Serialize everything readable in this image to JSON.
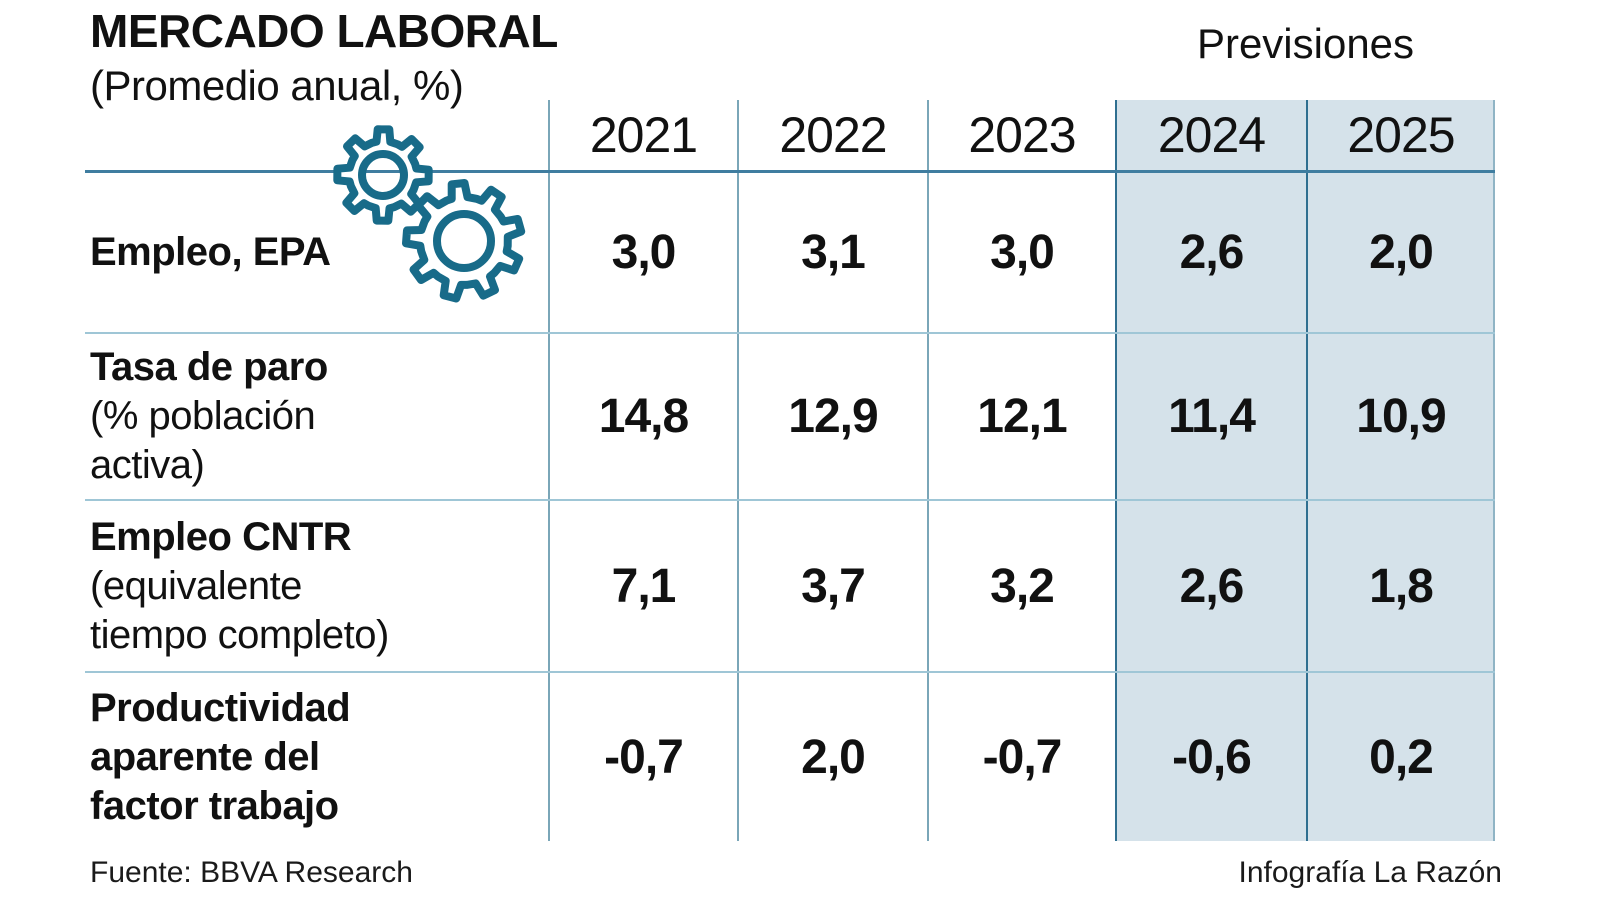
{
  "title": "MERCADO LABORAL",
  "subtitle": "(Promedio anual, %)",
  "forecast_label": "Previsiones",
  "columns": [
    "2021",
    "2022",
    "2023",
    "2024",
    "2025"
  ],
  "rows": [
    {
      "label_lines": [
        "Empleo, EPA"
      ],
      "values": [
        "3,0",
        "3,1",
        "3,0",
        "2,6",
        "2,0"
      ]
    },
    {
      "label_lines": [
        "Tasa de paro",
        "(% población",
        "activa)"
      ],
      "values": [
        "14,8",
        "12,9",
        "12,1",
        "11,4",
        "10,9"
      ]
    },
    {
      "label_lines": [
        "Empleo CNTR",
        "(equivalente",
        "tiempo completo)"
      ],
      "values": [
        "7,1",
        "3,7",
        "3,2",
        "2,6",
        "1,8"
      ]
    },
    {
      "label_lines": [
        "Productividad",
        "aparente del",
        "factor trabajo"
      ],
      "values": [
        "-0,7",
        "2,0",
        "-0,7",
        "-0,6",
        "0,2"
      ]
    }
  ],
  "footer": {
    "source": "Fuente: BBVA Research",
    "credit": "Infografía La Razón"
  },
  "colors": {
    "highlight_bg": "#d5e2ea",
    "header_line": "#3f7da0",
    "grid_light": "#7aa6b8",
    "grid_dark": "#2f6f90",
    "row_separator": "#9fc6d6",
    "gear": "#186b89",
    "text": "#111111"
  },
  "chart_data": {
    "type": "table",
    "title": "MERCADO LABORAL",
    "subtitle": "(Promedio anual, %)",
    "columns": [
      "2021",
      "2022",
      "2023",
      "2024",
      "2025"
    ],
    "forecast_label": "Previsiones",
    "forecast_columns": [
      "2024",
      "2025"
    ],
    "rows": [
      {
        "label": "Empleo, EPA",
        "values": [
          3.0,
          3.1,
          3.0,
          2.6,
          2.0
        ]
      },
      {
        "label": "Tasa de paro (% población activa)",
        "values": [
          14.8,
          12.9,
          12.1,
          11.4,
          10.9
        ]
      },
      {
        "label": "Empleo CNTR (equivalente tiempo completo)",
        "values": [
          7.1,
          3.7,
          3.2,
          2.6,
          1.8
        ]
      },
      {
        "label": "Productividad aparente del factor trabajo",
        "values": [
          -0.7,
          2.0,
          -0.7,
          -0.6,
          0.2
        ]
      }
    ],
    "source": "Fuente: BBVA Research",
    "credit": "Infografía La Razón"
  }
}
